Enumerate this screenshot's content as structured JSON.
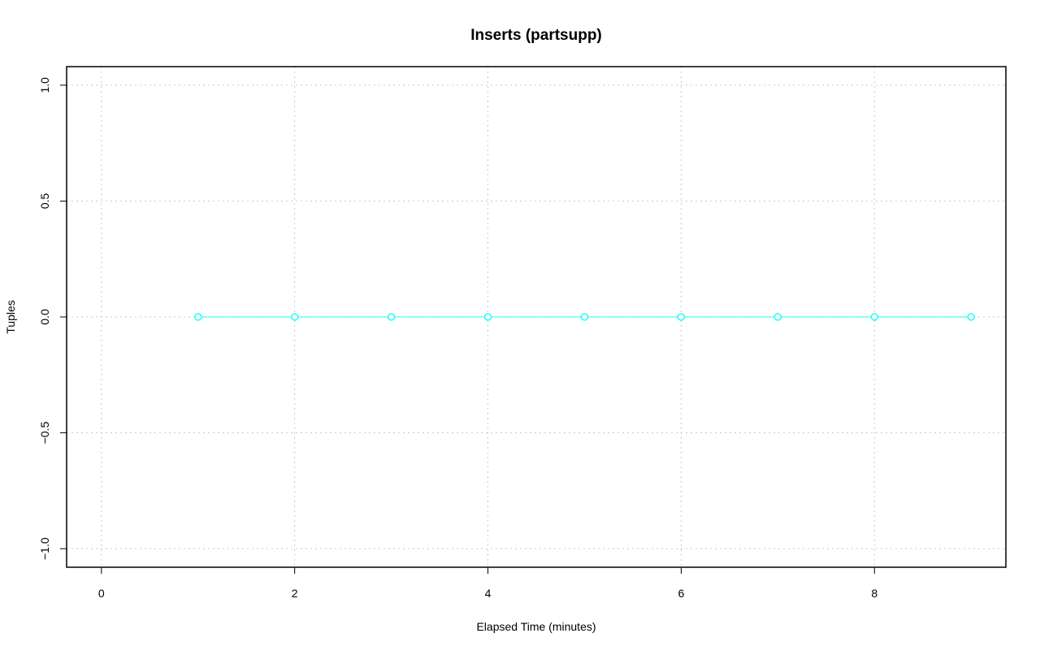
{
  "chart_data": {
    "type": "line",
    "title": "Inserts (partsupp)",
    "xlabel": "Elapsed Time (minutes)",
    "ylabel": "Tuples",
    "xlim": [
      0,
      9
    ],
    "ylim": [
      -1,
      1
    ],
    "xticks": [
      "0",
      "2",
      "4",
      "6",
      "8"
    ],
    "yticks": [
      "-1.0",
      "-0.5",
      "0.0",
      "0.5",
      "1.0"
    ],
    "grid": true,
    "series": [
      {
        "color": "#00ffff",
        "marker": "open-circle",
        "x": [
          1,
          2,
          3,
          4,
          5,
          6,
          7,
          8,
          9
        ],
        "y": [
          0,
          0,
          0,
          0,
          0,
          0,
          0,
          0,
          0
        ]
      }
    ]
  }
}
